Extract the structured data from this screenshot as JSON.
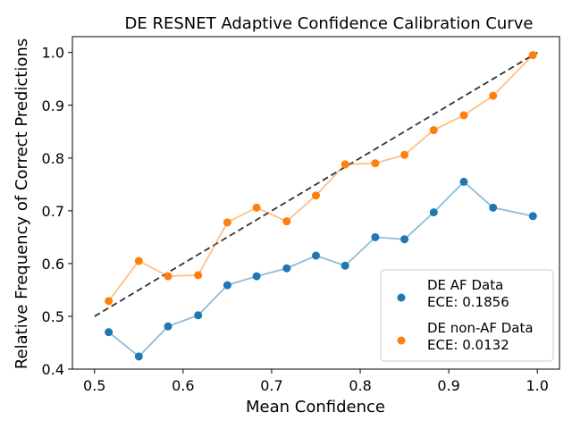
{
  "chart_data": {
    "type": "line",
    "title": "DE RESNET Adaptive Confidence Calibration Curve",
    "xlabel": "Mean Confidence",
    "ylabel": "Relative Frequency of Correct Predictions",
    "xlim": [
      0.475,
      1.025
    ],
    "ylim": [
      0.4,
      1.03
    ],
    "xticks": [
      0.5,
      0.6,
      0.7,
      0.8,
      0.9,
      1.0
    ],
    "xtick_labels": [
      "0.5",
      "0.6",
      "0.7",
      "0.8",
      "0.9",
      "1.0"
    ],
    "yticks": [
      0.4,
      0.5,
      0.6,
      0.7,
      0.8,
      0.9,
      1.0
    ],
    "ytick_labels": [
      "0.4",
      "0.5",
      "0.6",
      "0.7",
      "0.8",
      "0.9",
      "1.0"
    ],
    "grid": false,
    "legend_position": "bottom-right",
    "diagonal": {
      "x": [
        0.5,
        1.0
      ],
      "y": [
        0.5,
        1.0
      ],
      "color": "#333333",
      "style": "dashed"
    },
    "series": [
      {
        "name": "DE AF Data",
        "legend_line2": "ECE: 0.1856",
        "color": "#1f77b4",
        "x": [
          0.516,
          0.55,
          0.583,
          0.617,
          0.65,
          0.683,
          0.717,
          0.75,
          0.783,
          0.817,
          0.85,
          0.883,
          0.917,
          0.95,
          0.995
        ],
        "y": [
          0.47,
          0.424,
          0.481,
          0.502,
          0.559,
          0.576,
          0.591,
          0.615,
          0.596,
          0.65,
          0.646,
          0.697,
          0.755,
          0.706,
          0.69
        ]
      },
      {
        "name": "DE non-AF Data",
        "legend_line2": "ECE: 0.0132",
        "color": "#ff7f0e",
        "x": [
          0.516,
          0.55,
          0.583,
          0.617,
          0.65,
          0.683,
          0.717,
          0.75,
          0.783,
          0.817,
          0.85,
          0.883,
          0.917,
          0.95,
          0.995
        ],
        "y": [
          0.529,
          0.605,
          0.576,
          0.578,
          0.678,
          0.706,
          0.68,
          0.729,
          0.788,
          0.79,
          0.806,
          0.853,
          0.881,
          0.918,
          0.995
        ]
      }
    ]
  }
}
